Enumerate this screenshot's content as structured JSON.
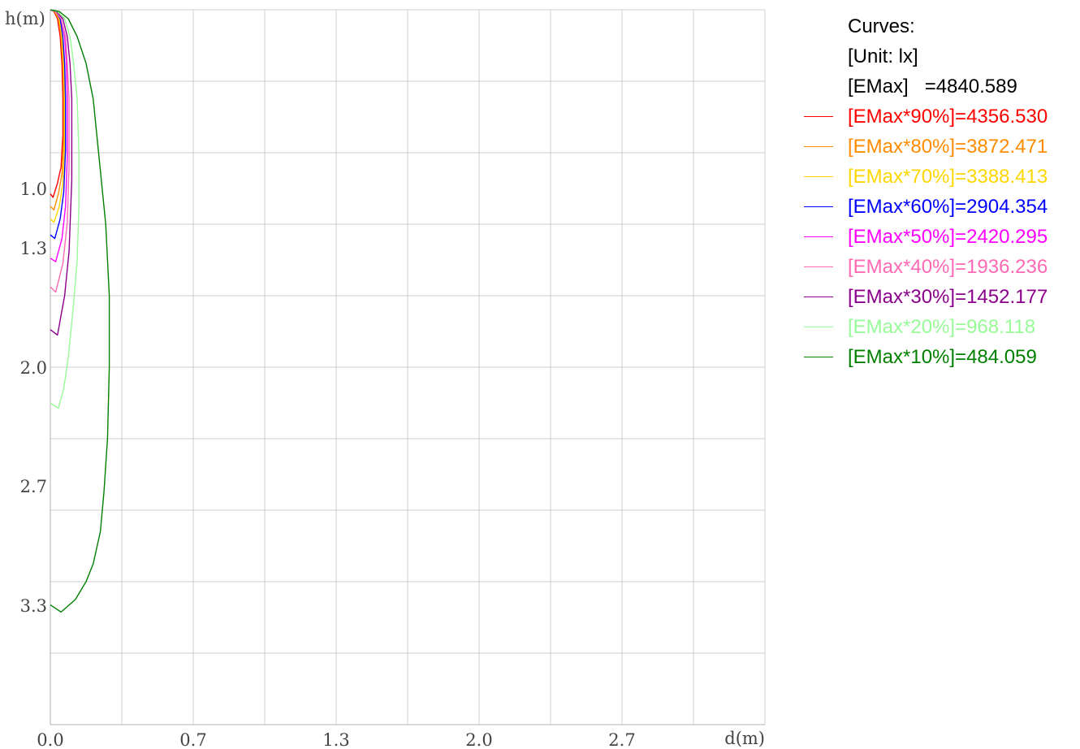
{
  "chart_data": {
    "type": "line",
    "xlabel": "d(m)",
    "ylabel": "h(m)",
    "xlim": [
      0,
      4.0
    ],
    "ylim": [
      0,
      4.0
    ],
    "y_inverted": true,
    "x_ticks": [
      "0.0",
      "0.7",
      "1.3",
      "2.0",
      "2.7"
    ],
    "y_ticks": [
      "1.0",
      "1.3",
      "2.0",
      "2.7",
      "3.3"
    ],
    "grid": true,
    "legend_position": "right",
    "legend_header": [
      "Curves:",
      "[Unit: lx]",
      "[EMax]   =4840.589"
    ],
    "series": [
      {
        "name": "[EMax*90%]=4356.530",
        "color": "#ff0000",
        "x": [
          0,
          0.02,
          0.04,
          0.055,
          0.065,
          0.07,
          0.07,
          0.06,
          0.04,
          0.015,
          0
        ],
        "y": [
          0,
          0.01,
          0.05,
          0.15,
          0.3,
          0.5,
          0.7,
          0.88,
          0.97,
          1.05,
          1.03
        ]
      },
      {
        "name": "[EMax*80%]=3872.471",
        "color": "#ff8c00",
        "x": [
          0,
          0.025,
          0.045,
          0.06,
          0.07,
          0.075,
          0.075,
          0.065,
          0.045,
          0.02,
          0
        ],
        "y": [
          0,
          0.01,
          0.05,
          0.15,
          0.3,
          0.5,
          0.72,
          0.92,
          1.03,
          1.12,
          1.1
        ]
      },
      {
        "name": "[EMax*70%]=3388.413",
        "color": "#ffd700",
        "x": [
          0,
          0.025,
          0.05,
          0.065,
          0.075,
          0.08,
          0.08,
          0.07,
          0.05,
          0.02,
          0
        ],
        "y": [
          0,
          0.01,
          0.05,
          0.15,
          0.3,
          0.5,
          0.75,
          0.97,
          1.1,
          1.19,
          1.17
        ]
      },
      {
        "name": "[EMax*60%]=2904.354",
        "color": "#0000ff",
        "x": [
          0,
          0.03,
          0.055,
          0.07,
          0.08,
          0.085,
          0.085,
          0.075,
          0.055,
          0.025,
          0
        ],
        "y": [
          0,
          0.01,
          0.05,
          0.15,
          0.3,
          0.5,
          0.78,
          1.02,
          1.17,
          1.28,
          1.26
        ]
      },
      {
        "name": "[EMax*50%]=2420.295",
        "color": "#ff00ff",
        "x": [
          0,
          0.03,
          0.06,
          0.08,
          0.09,
          0.095,
          0.095,
          0.085,
          0.065,
          0.03,
          0
        ],
        "y": [
          0,
          0.01,
          0.05,
          0.15,
          0.3,
          0.5,
          0.82,
          1.1,
          1.28,
          1.41,
          1.39
        ]
      },
      {
        "name": "[EMax*40%]=1936.236",
        "color": "#ff69b4",
        "x": [
          0,
          0.03,
          0.06,
          0.085,
          0.095,
          0.105,
          0.105,
          0.095,
          0.07,
          0.03,
          0
        ],
        "y": [
          0,
          0.01,
          0.05,
          0.15,
          0.3,
          0.5,
          0.87,
          1.19,
          1.42,
          1.58,
          1.55
        ]
      },
      {
        "name": "[EMax*30%]=1452.177",
        "color": "#8b008b",
        "x": [
          0,
          0.035,
          0.07,
          0.095,
          0.11,
          0.12,
          0.12,
          0.105,
          0.08,
          0.04,
          0
        ],
        "y": [
          0,
          0.01,
          0.05,
          0.15,
          0.3,
          0.5,
          0.95,
          1.35,
          1.6,
          1.82,
          1.79
        ]
      },
      {
        "name": "[EMax*20%]=968.118",
        "color": "#98fb98",
        "x": [
          0,
          0.04,
          0.08,
          0.11,
          0.13,
          0.15,
          0.16,
          0.16,
          0.15,
          0.13,
          0.1,
          0.075,
          0.045,
          0
        ],
        "y": [
          0,
          0.01,
          0.05,
          0.15,
          0.3,
          0.5,
          0.8,
          1.1,
          1.4,
          1.65,
          1.95,
          2.12,
          2.23,
          2.2
        ]
      },
      {
        "name": "[EMax*10%]=484.059",
        "color": "#008000",
        "x": [
          0,
          0.05,
          0.1,
          0.15,
          0.2,
          0.24,
          0.27,
          0.31,
          0.33,
          0.33,
          0.32,
          0.3,
          0.28,
          0.24,
          0.2,
          0.14,
          0.06,
          0
        ],
        "y": [
          0,
          0.01,
          0.05,
          0.15,
          0.3,
          0.5,
          0.8,
          1.2,
          1.6,
          2.0,
          2.4,
          2.7,
          2.92,
          3.1,
          3.2,
          3.3,
          3.37,
          3.33
        ]
      }
    ]
  }
}
